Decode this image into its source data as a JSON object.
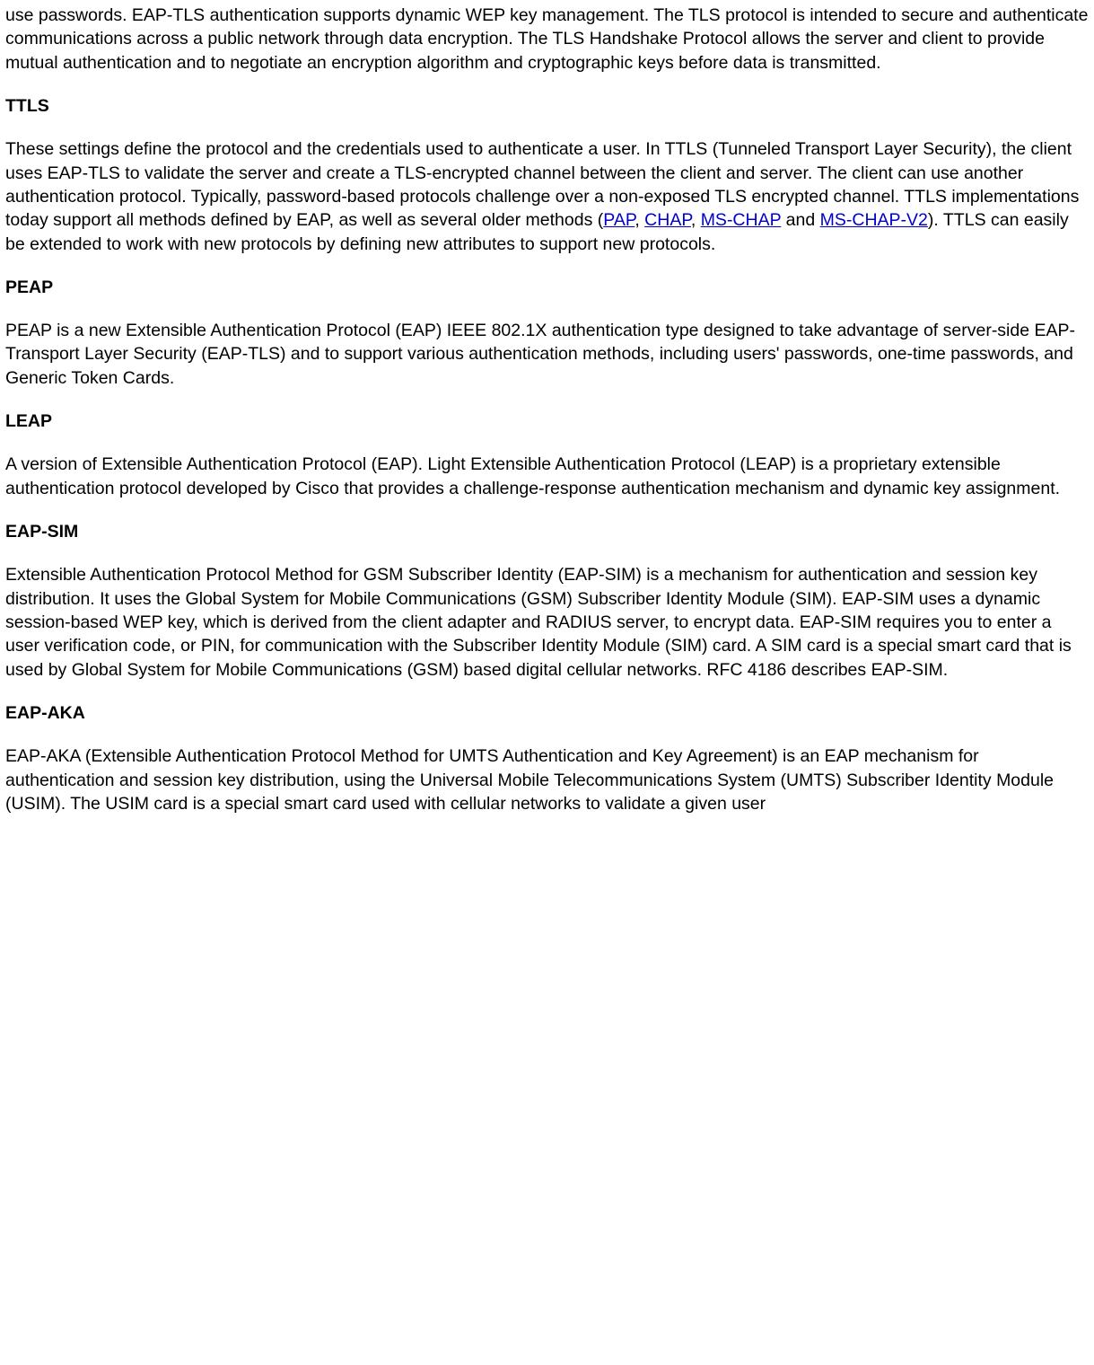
{
  "intro": {
    "text_before_links": "use passwords. EAP-TLS authentication supports dynamic WEP key management. The TLS protocol is intended to secure and authenticate communications across a public network through data encryption. The TLS Handshake Protocol allows the server and client to provide mutual authentication and to negotiate an encryption algorithm and cryptographic keys before data is transmitted."
  },
  "ttls": {
    "heading": "TTLS",
    "p1_a": "These settings define the protocol and the credentials used to authenticate a user. In TTLS (Tunneled Transport Layer Security), the client uses EAP-TLS to validate the server and create a TLS-encrypted channel between the client and server. The client can use another authentication protocol. Typically, password-based protocols challenge over a non-exposed TLS encrypted channel. TTLS implementations today support all methods defined by EAP, as well as several older methods (",
    "link1": "PAP",
    "sep1": ", ",
    "link2": "CHAP",
    "sep2": ", ",
    "link3": "MS-CHAP",
    "sep3": " and ",
    "link4": "MS-CHAP-V2",
    "p1_b": "). TTLS can easily be extended to work with new protocols by defining new attributes to support new protocols."
  },
  "peap": {
    "heading": "PEAP",
    "p1": "PEAP is a new Extensible Authentication Protocol (EAP) IEEE 802.1X authentication type designed to take advantage of server-side EAP-Transport Layer Security (EAP-TLS) and to support various authentication methods, including users' passwords, one-time passwords, and Generic Token Cards."
  },
  "leap": {
    "heading": "LEAP",
    "p1": "A version of Extensible Authentication Protocol (EAP). Light Extensible Authentication Protocol (LEAP) is a proprietary extensible authentication protocol developed by Cisco that provides a challenge-response authentication mechanism and dynamic key assignment."
  },
  "eapsim": {
    "heading": "EAP-SIM",
    "p1": "Extensible Authentication Protocol Method for GSM Subscriber Identity (EAP-SIM) is a mechanism for authentication and session key distribution. It uses the Global System for Mobile Communications (GSM) Subscriber Identity Module (SIM). EAP-SIM uses a dynamic session-based WEP key, which is derived from the client adapter and RADIUS server, to encrypt data. EAP-SIM requires you to enter a user verification code, or PIN, for communication with the Subscriber Identity Module (SIM) card. A SIM card is a special smart card that is used by Global System for Mobile Communications (GSM) based digital cellular networks. RFC 4186 describes EAP-SIM."
  },
  "eapaka": {
    "heading": "EAP-AKA",
    "p1": "EAP-AKA (Extensible Authentication Protocol Method for UMTS Authentication and Key Agreement) is an EAP mechanism for authentication and session key distribution, using the Universal Mobile Telecommunications System (UMTS) Subscriber Identity Module (USIM). The USIM card is a special smart card used with cellular networks to validate a given user"
  },
  "style": {
    "link_color": "#0000cc",
    "text_color": "#000000",
    "background_color": "#ffffff",
    "font_family": "Verdana",
    "font_size_pt": 15,
    "heading_weight": "bold"
  }
}
